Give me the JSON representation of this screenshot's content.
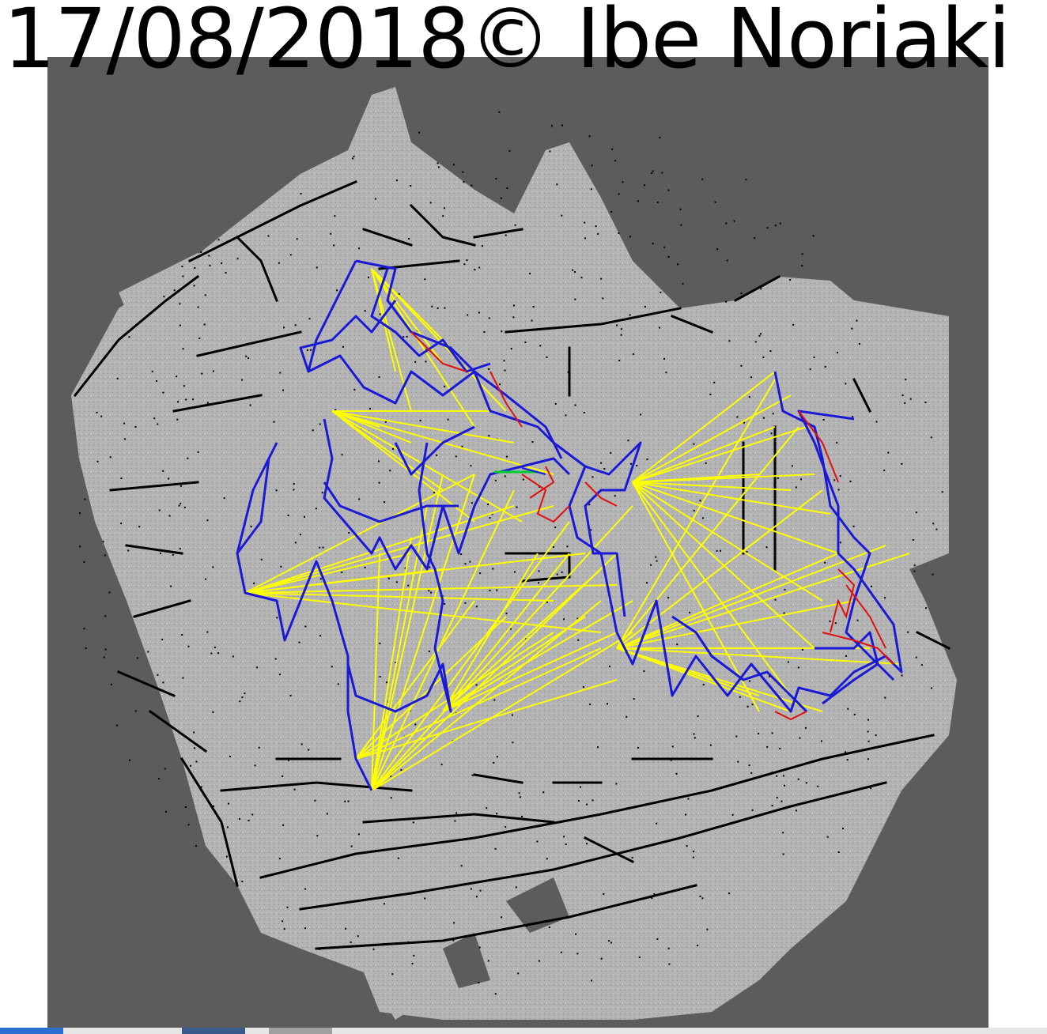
{
  "watermark": {
    "text": "17/08/2018© Ibe Noriaki"
  },
  "map": {
    "legend_colors": {
      "unknown": "#5c5c5c",
      "free_space": "#b3b3b3",
      "obstacle": "#000000",
      "trajectory": "#1a1ad6",
      "loop_constraint": "#ffff00",
      "loop_closure": "#e01010",
      "robot_pose": "#00cc33"
    },
    "icons": [
      "robot-pose-marker"
    ]
  }
}
